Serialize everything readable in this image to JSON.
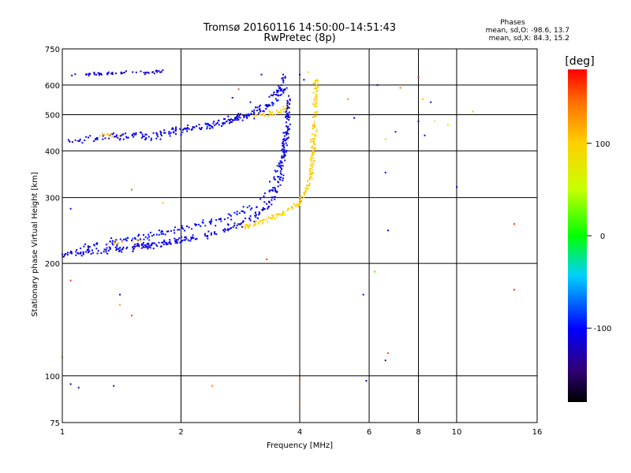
{
  "chart_data": {
    "type": "scatter",
    "title": "Tromsø 20160116 14:50:00–14:51:43",
    "subtitle": "RwPretec (8p)",
    "xlabel": "Frequency [MHz]",
    "ylabel": "Stationary phase Virtual Height [km]",
    "x_scale": "log",
    "y_scale": "log",
    "xlim": [
      1,
      16
    ],
    "ylim": [
      75,
      750
    ],
    "x_ticks": [
      1,
      2,
      4,
      6,
      8,
      10,
      16
    ],
    "x_tick_labels": [
      "1",
      "2",
      "4",
      "6",
      "8",
      "10",
      "16"
    ],
    "y_ticks": [
      75,
      100,
      200,
      300,
      400,
      500,
      600,
      750
    ],
    "y_tick_labels": [
      "75",
      "100",
      "200",
      "300",
      "400",
      "500",
      "600",
      "750"
    ],
    "grid_x": [
      1,
      2,
      4,
      6,
      8,
      10,
      16
    ],
    "grid_y": [
      75,
      100,
      200,
      300,
      400,
      500,
      600,
      750
    ],
    "grid": true,
    "stats": {
      "heading": "Phases",
      "o_line": "mean, sd,O: -98.6, 13.7",
      "x_line": "mean, sd,X:  84.3, 15.2"
    },
    "colorbar": {
      "unit": "[deg]",
      "range": [
        -180,
        180
      ],
      "ticks": [
        100,
        0,
        -100
      ],
      "tick_labels": [
        "100",
        "0",
        "-100"
      ]
    },
    "traces": [
      {
        "desc": "upper O trace",
        "points": [
          [
            1.05,
            430
          ],
          [
            1.2,
            432
          ],
          [
            1.4,
            437
          ],
          [
            1.6,
            442
          ],
          [
            1.8,
            447
          ],
          [
            2.0,
            455
          ],
          [
            2.2,
            462
          ],
          [
            2.4,
            470
          ],
          [
            2.6,
            480
          ],
          [
            2.8,
            490
          ],
          [
            3.0,
            505
          ],
          [
            3.2,
            520
          ],
          [
            3.4,
            545
          ],
          [
            3.55,
            580
          ],
          [
            3.65,
            640
          ]
        ],
        "phase": -110,
        "spread": 0.035,
        "count": 190
      },
      {
        "desc": "upper O trace second band",
        "points": [
          [
            1.6,
            430
          ],
          [
            2.0,
            450
          ],
          [
            2.4,
            468
          ],
          [
            2.8,
            488
          ],
          [
            3.2,
            510
          ],
          [
            3.5,
            545
          ],
          [
            3.7,
            600
          ]
        ],
        "phase": -105,
        "spread": 0.03,
        "count": 80
      },
      {
        "desc": "upper X trace",
        "points": [
          [
            3.0,
            495
          ],
          [
            3.3,
            500
          ],
          [
            3.6,
            510
          ],
          [
            3.75,
            530
          ]
        ],
        "phase": 100,
        "spread": 0.025,
        "count": 35
      },
      {
        "desc": "top band",
        "points": [
          [
            1.05,
            640
          ],
          [
            1.3,
            645
          ],
          [
            1.5,
            648
          ],
          [
            1.8,
            652
          ]
        ],
        "phase": -115,
        "spread": 0.015,
        "count": 55
      },
      {
        "desc": "lower O trace",
        "points": [
          [
            1.0,
            212
          ],
          [
            1.2,
            215
          ],
          [
            1.5,
            220
          ],
          [
            1.8,
            226
          ],
          [
            2.1,
            233
          ],
          [
            2.4,
            240
          ],
          [
            2.7,
            250
          ],
          [
            3.0,
            262
          ],
          [
            3.2,
            275
          ],
          [
            3.4,
            295
          ],
          [
            3.55,
            330
          ],
          [
            3.65,
            390
          ],
          [
            3.72,
            470
          ],
          [
            3.75,
            560
          ]
        ],
        "phase": -110,
        "spread": 0.03,
        "count": 330
      },
      {
        "desc": "lower O trace upper band",
        "points": [
          [
            1.1,
            222
          ],
          [
            1.5,
            232
          ],
          [
            1.9,
            245
          ],
          [
            2.3,
            255
          ],
          [
            2.7,
            268
          ],
          [
            3.1,
            285
          ],
          [
            3.4,
            320
          ],
          [
            3.6,
            380
          ],
          [
            3.75,
            470
          ]
        ],
        "phase": -100,
        "spread": 0.035,
        "count": 160
      },
      {
        "desc": "lower X trace",
        "points": [
          [
            2.9,
            250
          ],
          [
            3.3,
            262
          ],
          [
            3.7,
            275
          ],
          [
            4.0,
            290
          ],
          [
            4.2,
            320
          ],
          [
            4.3,
            370
          ],
          [
            4.35,
            440
          ],
          [
            4.38,
            530
          ],
          [
            4.4,
            620
          ]
        ],
        "phase": 100,
        "spread": 0.025,
        "count": 210
      },
      {
        "desc": "lower X trace faint",
        "points": [
          [
            1.3,
            225
          ],
          [
            1.6,
            232
          ]
        ],
        "phase": 110,
        "spread": 0.02,
        "count": 10
      },
      {
        "desc": "upper X faint",
        "points": [
          [
            1.25,
            440
          ],
          [
            1.45,
            442
          ]
        ],
        "phase": 110,
        "spread": 0.02,
        "count": 10
      }
    ],
    "scatter_points": [
      {
        "x": 4.0,
        "y": 640,
        "phase": -100
      },
      {
        "x": 4.1,
        "y": 620,
        "phase": -110
      },
      {
        "x": 4.2,
        "y": 650,
        "phase": 95
      },
      {
        "x": 6.3,
        "y": 600,
        "phase": -110
      },
      {
        "x": 7.2,
        "y": 590,
        "phase": 140
      },
      {
        "x": 7.0,
        "y": 450,
        "phase": -100
      },
      {
        "x": 6.6,
        "y": 430,
        "phase": 40
      },
      {
        "x": 6.6,
        "y": 350,
        "phase": -100
      },
      {
        "x": 6.7,
        "y": 245,
        "phase": -110
      },
      {
        "x": 8.0,
        "y": 630,
        "phase": 170
      },
      {
        "x": 8.2,
        "y": 550,
        "phase": 110
      },
      {
        "x": 8.6,
        "y": 540,
        "phase": -110
      },
      {
        "x": 8.0,
        "y": 480,
        "phase": -105
      },
      {
        "x": 8.8,
        "y": 480,
        "phase": 60
      },
      {
        "x": 9.5,
        "y": 470,
        "phase": 40
      },
      {
        "x": 8.3,
        "y": 440,
        "phase": -100
      },
      {
        "x": 11.0,
        "y": 510,
        "phase": 110
      },
      {
        "x": 10.0,
        "y": 320,
        "phase": -100
      },
      {
        "x": 14.0,
        "y": 255,
        "phase": 160
      },
      {
        "x": 14.0,
        "y": 170,
        "phase": 165
      },
      {
        "x": 5.5,
        "y": 490,
        "phase": -100
      },
      {
        "x": 5.3,
        "y": 550,
        "phase": 130
      },
      {
        "x": 6.2,
        "y": 190,
        "phase": 20
      },
      {
        "x": 5.8,
        "y": 165,
        "phase": -100
      },
      {
        "x": 6.7,
        "y": 115,
        "phase": 150
      },
      {
        "x": 6.6,
        "y": 110,
        "phase": -150
      },
      {
        "x": 4.0,
        "y": 110,
        "phase": 150
      },
      {
        "x": 4.0,
        "y": 98,
        "phase": 160
      },
      {
        "x": 4.0,
        "y": 85,
        "phase": 150
      },
      {
        "x": 3.3,
        "y": 205,
        "phase": 160
      },
      {
        "x": 1.05,
        "y": 180,
        "phase": 160
      },
      {
        "x": 1.4,
        "y": 165,
        "phase": -110
      },
      {
        "x": 1.4,
        "y": 155,
        "phase": 130
      },
      {
        "x": 1.5,
        "y": 145,
        "phase": 160
      },
      {
        "x": 1.5,
        "y": 315,
        "phase": 150
      },
      {
        "x": 1.05,
        "y": 280,
        "phase": -100
      },
      {
        "x": 1.0,
        "y": 112,
        "phase": 120
      },
      {
        "x": 1.05,
        "y": 95,
        "phase": -110
      },
      {
        "x": 1.1,
        "y": 93,
        "phase": -100
      },
      {
        "x": 1.35,
        "y": 94,
        "phase": -130
      },
      {
        "x": 2.4,
        "y": 94,
        "phase": 140
      },
      {
        "x": 5.9,
        "y": 97,
        "phase": -120
      },
      {
        "x": 1.8,
        "y": 290,
        "phase": 110
      },
      {
        "x": 2.8,
        "y": 585,
        "phase": 150
      },
      {
        "x": 3.2,
        "y": 640,
        "phase": -110
      },
      {
        "x": 3.0,
        "y": 540,
        "phase": -100
      },
      {
        "x": 2.7,
        "y": 555,
        "phase": -100
      }
    ]
  }
}
